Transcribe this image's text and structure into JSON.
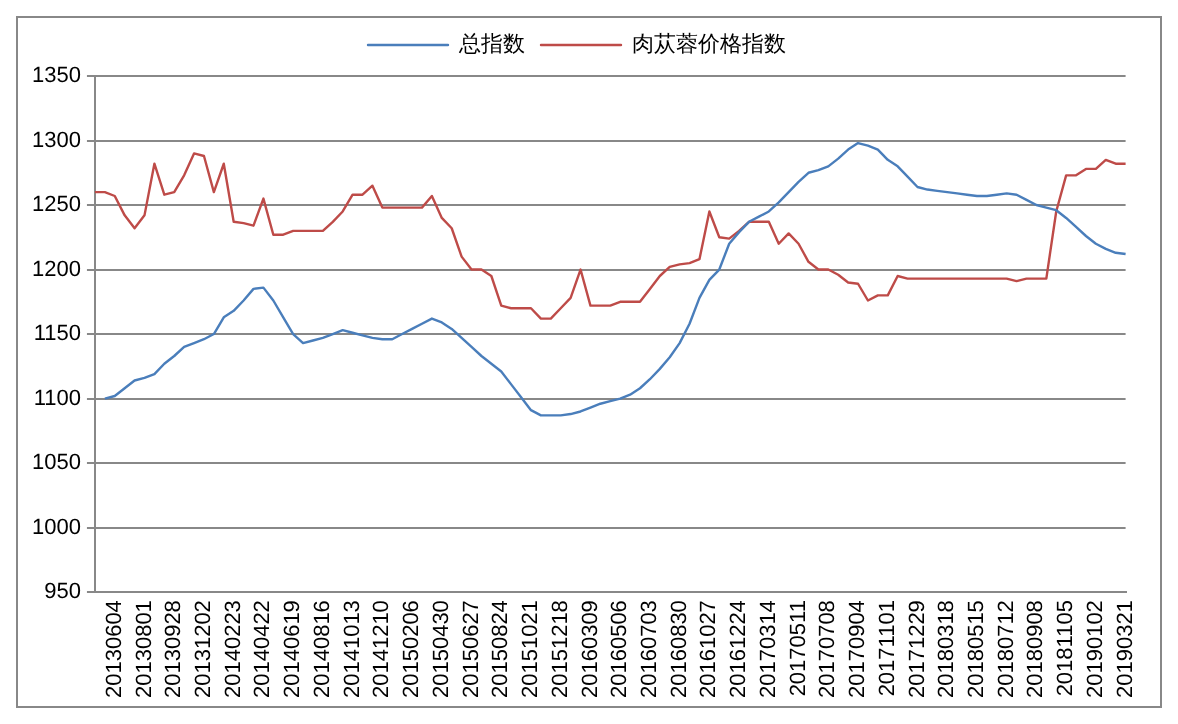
{
  "chart_data": {
    "type": "line",
    "categories": [
      null,
      null,
      "20130604",
      null,
      null,
      "20130801",
      null,
      null,
      "20130928",
      null,
      null,
      "20131202",
      null,
      null,
      "20140223",
      null,
      null,
      "20140422",
      null,
      null,
      "20140619",
      null,
      null,
      "20140816",
      null,
      null,
      "20141013",
      null,
      null,
      "20141210",
      null,
      null,
      "20150206",
      null,
      null,
      "20150430",
      null,
      null,
      "20150627",
      null,
      null,
      "20150824",
      null,
      null,
      "20151021",
      null,
      null,
      "20151218",
      null,
      null,
      "20160309",
      null,
      null,
      "20160506",
      null,
      null,
      "20160703",
      null,
      null,
      "20160830",
      null,
      null,
      "20161027",
      null,
      null,
      "20161224",
      null,
      null,
      "20170314",
      null,
      null,
      "20170511",
      null,
      null,
      "20170708",
      null,
      null,
      "20170904",
      null,
      null,
      "20171101",
      null,
      null,
      "20171229",
      null,
      null,
      "20180318",
      null,
      null,
      "20180515",
      null,
      null,
      "20180712",
      null,
      null,
      "20180908",
      null,
      null,
      "20181105",
      null,
      null,
      "20190102",
      null,
      null,
      "20190321"
    ],
    "series": [
      {
        "name": "总指数",
        "color": "#4a7ebb",
        "values": [
          null,
          1100,
          1102,
          1108,
          1114,
          1116,
          1119,
          1127,
          1133,
          1140,
          1143,
          1146,
          1150,
          1163,
          1168,
          1176,
          1185,
          1186,
          1176,
          1163,
          1150,
          1143,
          1145,
          1147,
          1150,
          1153,
          1151,
          1149,
          1147,
          1146,
          1146,
          1150,
          1154,
          1158,
          1162,
          1159,
          1154,
          1147,
          1140,
          1133,
          1127,
          1121,
          1111,
          1101,
          1091,
          1087,
          1087,
          1087,
          1088,
          1090,
          1093,
          1096,
          1098,
          1100,
          1103,
          1108,
          1115,
          1123,
          1132,
          1143,
          1158,
          1178,
          1192,
          1200,
          1220,
          1229,
          1237,
          1241,
          1245,
          1252,
          1260,
          1268,
          1275,
          1277,
          1280,
          1286,
          1293,
          1298,
          1296,
          1293,
          1285,
          1280,
          1272,
          1264,
          1262,
          1261,
          1260,
          1259,
          1258,
          1257,
          1257,
          1258,
          1259,
          1258,
          1254,
          1250,
          1248,
          1246,
          1240,
          1233,
          1226,
          1220,
          1216,
          1213,
          1212
        ]
      },
      {
        "name": "肉苁蓉价格指数",
        "color": "#be4b48",
        "values": [
          1260,
          1260,
          1257,
          1242,
          1232,
          1242,
          1282,
          1258,
          1260,
          1273,
          1290,
          1288,
          1260,
          1282,
          1237,
          1236,
          1234,
          1255,
          1227,
          1227,
          1230,
          1230,
          1230,
          1230,
          1237,
          1245,
          1258,
          1258,
          1265,
          1248,
          1248,
          1248,
          1248,
          1248,
          1257,
          1240,
          1232,
          1210,
          1200,
          1200,
          1195,
          1172,
          1170,
          1170,
          1170,
          1162,
          1162,
          1170,
          1178,
          1200,
          1172,
          1172,
          1172,
          1175,
          1175,
          1175,
          1185,
          1195,
          1202,
          1204,
          1205,
          1208,
          1245,
          1225,
          1224,
          1230,
          1237,
          1237,
          1237,
          1220,
          1228,
          1220,
          1206,
          1200,
          1200,
          1196,
          1190,
          1189,
          1176,
          1180,
          1180,
          1195,
          1193,
          1193,
          1193,
          1193,
          1193,
          1193,
          1193,
          1193,
          1193,
          1193,
          1193,
          1191,
          1193,
          1193,
          1193,
          1245,
          1273,
          1273,
          1278,
          1278,
          1285,
          1282,
          1282
        ]
      }
    ],
    "ylim": [
      950,
      1350
    ],
    "yticks": [
      950,
      1000,
      1050,
      1100,
      1150,
      1200,
      1250,
      1300,
      1350
    ],
    "grid": "y",
    "legend": "top",
    "marker": "none",
    "line_style": "solid"
  }
}
